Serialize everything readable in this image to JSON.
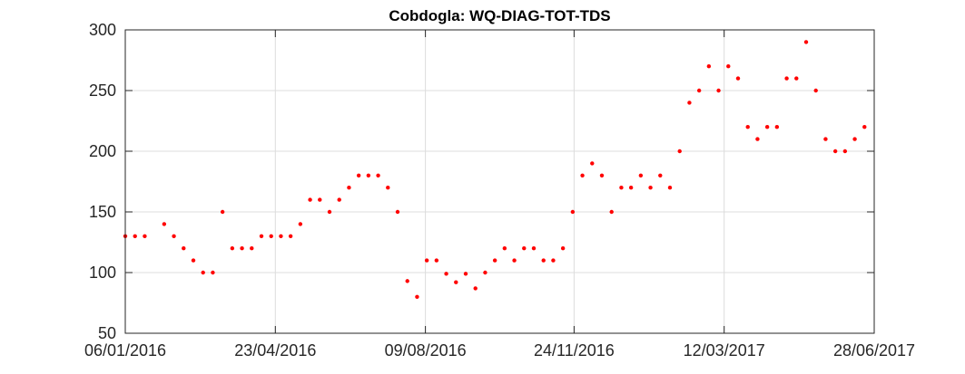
{
  "chart_data": {
    "type": "scatter",
    "title": "Cobdogla: WQ-DIAG-TOT-TDS",
    "xlabel": "",
    "ylabel": "",
    "x_axis": "date",
    "xlim": [
      "2016-01-06",
      "2017-06-28"
    ],
    "ylim": [
      50,
      300
    ],
    "xticks": [
      "06/01/2016",
      "23/04/2016",
      "09/08/2016",
      "24/11/2016",
      "12/03/2017",
      "28/06/2017"
    ],
    "yticks": [
      50,
      100,
      150,
      200,
      250,
      300
    ],
    "grid": true,
    "marker_color": "#ff0000",
    "series": [
      {
        "points": [
          [
            "2016-01-06",
            130
          ],
          [
            "2016-01-13",
            130
          ],
          [
            "2016-01-20",
            130
          ],
          [
            "2016-02-03",
            140
          ],
          [
            "2016-02-10",
            130
          ],
          [
            "2016-02-17",
            120
          ],
          [
            "2016-02-24",
            110
          ],
          [
            "2016-03-02",
            100
          ],
          [
            "2016-03-09",
            100
          ],
          [
            "2016-03-16",
            150
          ],
          [
            "2016-03-23",
            120
          ],
          [
            "2016-03-30",
            120
          ],
          [
            "2016-04-06",
            120
          ],
          [
            "2016-04-13",
            130
          ],
          [
            "2016-04-20",
            130
          ],
          [
            "2016-04-27",
            130
          ],
          [
            "2016-05-04",
            130
          ],
          [
            "2016-05-11",
            140
          ],
          [
            "2016-05-18",
            160
          ],
          [
            "2016-05-25",
            160
          ],
          [
            "2016-06-01",
            150
          ],
          [
            "2016-06-08",
            160
          ],
          [
            "2016-06-15",
            170
          ],
          [
            "2016-06-22",
            180
          ],
          [
            "2016-06-29",
            180
          ],
          [
            "2016-07-06",
            180
          ],
          [
            "2016-07-13",
            170
          ],
          [
            "2016-07-20",
            150
          ],
          [
            "2016-07-27",
            93
          ],
          [
            "2016-08-03",
            80
          ],
          [
            "2016-08-10",
            110
          ],
          [
            "2016-08-17",
            110
          ],
          [
            "2016-08-24",
            99
          ],
          [
            "2016-08-31",
            92
          ],
          [
            "2016-09-07",
            99
          ],
          [
            "2016-09-14",
            87
          ],
          [
            "2016-09-21",
            100
          ],
          [
            "2016-09-28",
            110
          ],
          [
            "2016-10-05",
            120
          ],
          [
            "2016-10-12",
            110
          ],
          [
            "2016-10-19",
            120
          ],
          [
            "2016-10-26",
            120
          ],
          [
            "2016-11-02",
            110
          ],
          [
            "2016-11-09",
            110
          ],
          [
            "2016-11-16",
            120
          ],
          [
            "2016-11-23",
            150
          ],
          [
            "2016-11-30",
            180
          ],
          [
            "2016-12-07",
            190
          ],
          [
            "2016-12-14",
            180
          ],
          [
            "2016-12-21",
            150
          ],
          [
            "2016-12-28",
            170
          ],
          [
            "2017-01-04",
            170
          ],
          [
            "2017-01-11",
            180
          ],
          [
            "2017-01-18",
            170
          ],
          [
            "2017-01-25",
            180
          ],
          [
            "2017-02-01",
            170
          ],
          [
            "2017-02-08",
            200
          ],
          [
            "2017-02-15",
            240
          ],
          [
            "2017-02-22",
            250
          ],
          [
            "2017-03-01",
            270
          ],
          [
            "2017-03-08",
            250
          ],
          [
            "2017-03-15",
            270
          ],
          [
            "2017-03-22",
            260
          ],
          [
            "2017-03-29",
            220
          ],
          [
            "2017-04-05",
            210
          ],
          [
            "2017-04-12",
            220
          ],
          [
            "2017-04-19",
            220
          ],
          [
            "2017-04-26",
            260
          ],
          [
            "2017-05-03",
            260
          ],
          [
            "2017-05-10",
            290
          ],
          [
            "2017-05-17",
            250
          ],
          [
            "2017-05-24",
            210
          ],
          [
            "2017-05-31",
            200
          ],
          [
            "2017-06-07",
            200
          ],
          [
            "2017-06-14",
            210
          ],
          [
            "2017-06-21",
            220
          ]
        ]
      }
    ]
  }
}
